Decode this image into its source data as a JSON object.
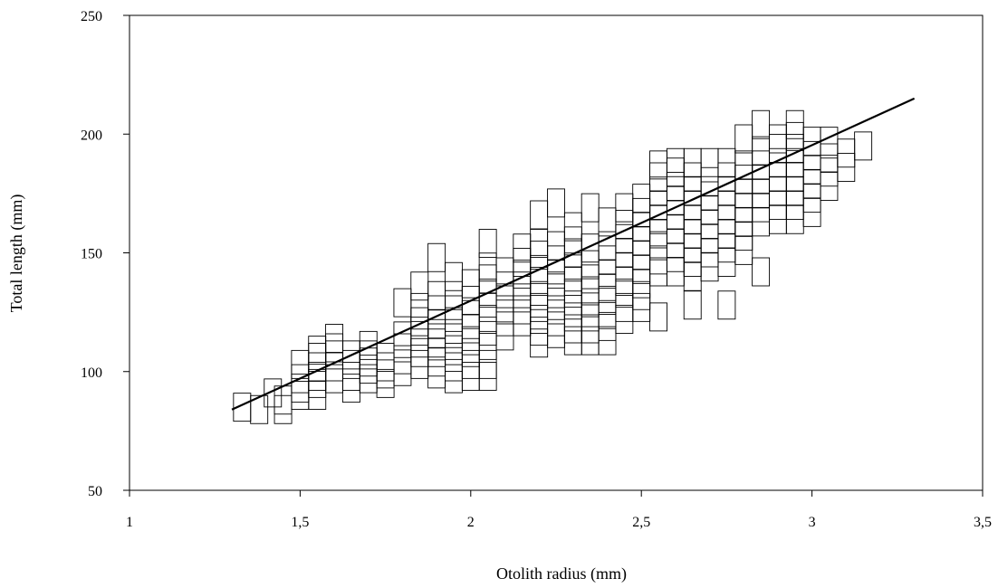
{
  "chart_data": {
    "type": "scatter",
    "title": "",
    "xlabel": "Otolith radius (mm)",
    "ylabel": "Total length (mm)",
    "xlim": [
      1,
      3.5
    ],
    "ylim": [
      50,
      250
    ],
    "x_ticks": [
      "1",
      "1,5",
      "2",
      "2,5",
      "3",
      "3,5"
    ],
    "x_tick_values": [
      1,
      1.5,
      2,
      2.5,
      3,
      3.5
    ],
    "y_ticks": [
      "50",
      "100",
      "150",
      "200",
      "250"
    ],
    "y_tick_values": [
      50,
      100,
      150,
      200,
      250
    ],
    "grid": false,
    "marker": "open-rectangle",
    "regression_line": {
      "x": [
        1.3,
        3.3
      ],
      "y": [
        84,
        215
      ]
    },
    "points": [
      [
        1.33,
        85
      ],
      [
        1.38,
        84
      ],
      [
        1.42,
        91
      ],
      [
        1.45,
        84
      ],
      [
        1.45,
        88
      ],
      [
        1.5,
        90
      ],
      [
        1.5,
        93
      ],
      [
        1.5,
        97
      ],
      [
        1.5,
        103
      ],
      [
        1.55,
        90
      ],
      [
        1.55,
        95
      ],
      [
        1.55,
        98
      ],
      [
        1.55,
        102
      ],
      [
        1.55,
        106
      ],
      [
        1.55,
        109
      ],
      [
        1.6,
        97
      ],
      [
        1.6,
        102
      ],
      [
        1.6,
        107
      ],
      [
        1.6,
        110
      ],
      [
        1.6,
        114
      ],
      [
        1.65,
        93
      ],
      [
        1.65,
        98
      ],
      [
        1.65,
        103
      ],
      [
        1.65,
        107
      ],
      [
        1.7,
        97
      ],
      [
        1.7,
        101
      ],
      [
        1.7,
        104
      ],
      [
        1.7,
        107
      ],
      [
        1.7,
        111
      ],
      [
        1.75,
        95
      ],
      [
        1.75,
        99
      ],
      [
        1.75,
        102
      ],
      [
        1.75,
        106
      ],
      [
        1.8,
        100
      ],
      [
        1.8,
        105
      ],
      [
        1.8,
        110
      ],
      [
        1.8,
        115
      ],
      [
        1.8,
        129
      ],
      [
        1.85,
        103
      ],
      [
        1.85,
        108
      ],
      [
        1.85,
        112
      ],
      [
        1.85,
        117
      ],
      [
        1.85,
        121
      ],
      [
        1.85,
        127
      ],
      [
        1.85,
        136
      ],
      [
        1.9,
        99
      ],
      [
        1.9,
        104
      ],
      [
        1.9,
        108
      ],
      [
        1.9,
        112
      ],
      [
        1.9,
        116
      ],
      [
        1.9,
        120
      ],
      [
        1.9,
        126
      ],
      [
        1.9,
        132
      ],
      [
        1.9,
        148
      ],
      [
        1.95,
        97
      ],
      [
        1.95,
        102
      ],
      [
        1.95,
        106
      ],
      [
        1.95,
        111
      ],
      [
        1.95,
        116
      ],
      [
        1.95,
        121
      ],
      [
        1.95,
        126
      ],
      [
        1.95,
        132
      ],
      [
        1.95,
        140
      ],
      [
        2.0,
        98
      ],
      [
        2.0,
        103
      ],
      [
        2.0,
        108
      ],
      [
        2.0,
        113
      ],
      [
        2.0,
        118
      ],
      [
        2.0,
        124
      ],
      [
        2.0,
        130
      ],
      [
        2.0,
        137
      ],
      [
        2.05,
        98
      ],
      [
        2.05,
        103
      ],
      [
        2.05,
        111
      ],
      [
        2.05,
        117
      ],
      [
        2.05,
        122
      ],
      [
        2.05,
        127
      ],
      [
        2.05,
        133
      ],
      [
        2.05,
        139
      ],
      [
        2.05,
        144
      ],
      [
        2.05,
        154
      ],
      [
        2.1,
        115
      ],
      [
        2.1,
        121
      ],
      [
        2.1,
        126
      ],
      [
        2.1,
        131
      ],
      [
        2.1,
        136
      ],
      [
        2.1,
        142
      ],
      [
        2.15,
        121
      ],
      [
        2.15,
        126
      ],
      [
        2.15,
        131
      ],
      [
        2.15,
        136
      ],
      [
        2.15,
        141
      ],
      [
        2.15,
        146
      ],
      [
        2.15,
        152
      ],
      [
        2.2,
        112
      ],
      [
        2.2,
        117
      ],
      [
        2.2,
        122
      ],
      [
        2.2,
        127
      ],
      [
        2.2,
        132
      ],
      [
        2.2,
        138
      ],
      [
        2.2,
        143
      ],
      [
        2.2,
        149
      ],
      [
        2.2,
        154
      ],
      [
        2.2,
        166
      ],
      [
        2.25,
        116
      ],
      [
        2.25,
        121
      ],
      [
        2.25,
        126
      ],
      [
        2.25,
        131
      ],
      [
        2.25,
        136
      ],
      [
        2.25,
        141
      ],
      [
        2.25,
        147
      ],
      [
        2.25,
        153
      ],
      [
        2.25,
        171
      ],
      [
        2.3,
        113
      ],
      [
        2.3,
        118
      ],
      [
        2.3,
        123
      ],
      [
        2.3,
        128
      ],
      [
        2.3,
        133
      ],
      [
        2.3,
        138
      ],
      [
        2.3,
        144
      ],
      [
        2.3,
        150
      ],
      [
        2.3,
        155
      ],
      [
        2.3,
        161
      ],
      [
        2.35,
        113
      ],
      [
        2.35,
        118
      ],
      [
        2.35,
        123
      ],
      [
        2.35,
        129
      ],
      [
        2.35,
        134
      ],
      [
        2.35,
        139
      ],
      [
        2.35,
        145
      ],
      [
        2.35,
        152
      ],
      [
        2.35,
        169
      ],
      [
        2.4,
        113
      ],
      [
        2.4,
        119
      ],
      [
        2.4,
        124
      ],
      [
        2.4,
        130
      ],
      [
        2.4,
        135
      ],
      [
        2.4,
        141
      ],
      [
        2.4,
        147
      ],
      [
        2.4,
        153
      ],
      [
        2.4,
        163
      ],
      [
        2.45,
        122
      ],
      [
        2.45,
        127
      ],
      [
        2.45,
        133
      ],
      [
        2.45,
        138
      ],
      [
        2.45,
        144
      ],
      [
        2.45,
        150
      ],
      [
        2.45,
        156
      ],
      [
        2.45,
        162
      ],
      [
        2.45,
        169
      ],
      [
        2.5,
        127
      ],
      [
        2.5,
        132
      ],
      [
        2.5,
        137
      ],
      [
        2.5,
        143
      ],
      [
        2.5,
        149
      ],
      [
        2.5,
        155
      ],
      [
        2.5,
        161
      ],
      [
        2.5,
        167
      ],
      [
        2.5,
        173
      ],
      [
        2.55,
        123
      ],
      [
        2.55,
        142
      ],
      [
        2.55,
        147
      ],
      [
        2.55,
        153
      ],
      [
        2.55,
        158
      ],
      [
        2.55,
        164
      ],
      [
        2.55,
        170
      ],
      [
        2.55,
        176
      ],
      [
        2.55,
        182
      ],
      [
        2.55,
        187
      ],
      [
        2.6,
        142
      ],
      [
        2.6,
        148
      ],
      [
        2.6,
        154
      ],
      [
        2.6,
        160
      ],
      [
        2.6,
        166
      ],
      [
        2.6,
        172
      ],
      [
        2.6,
        178
      ],
      [
        2.6,
        184
      ],
      [
        2.6,
        188
      ],
      [
        2.65,
        128
      ],
      [
        2.65,
        140
      ],
      [
        2.65,
        146
      ],
      [
        2.65,
        152
      ],
      [
        2.65,
        158
      ],
      [
        2.65,
        164
      ],
      [
        2.65,
        170
      ],
      [
        2.65,
        176
      ],
      [
        2.65,
        182
      ],
      [
        2.65,
        188
      ],
      [
        2.7,
        144
      ],
      [
        2.7,
        150
      ],
      [
        2.7,
        156
      ],
      [
        2.7,
        162
      ],
      [
        2.7,
        168
      ],
      [
        2.7,
        174
      ],
      [
        2.7,
        180
      ],
      [
        2.7,
        188
      ],
      [
        2.75,
        128
      ],
      [
        2.75,
        146
      ],
      [
        2.75,
        152
      ],
      [
        2.75,
        158
      ],
      [
        2.75,
        164
      ],
      [
        2.75,
        170
      ],
      [
        2.75,
        176
      ],
      [
        2.75,
        182
      ],
      [
        2.75,
        188
      ],
      [
        2.8,
        151
      ],
      [
        2.8,
        157
      ],
      [
        2.8,
        163
      ],
      [
        2.8,
        169
      ],
      [
        2.8,
        175
      ],
      [
        2.8,
        181
      ],
      [
        2.8,
        187
      ],
      [
        2.8,
        198
      ],
      [
        2.85,
        142
      ],
      [
        2.85,
        163
      ],
      [
        2.85,
        169
      ],
      [
        2.85,
        175
      ],
      [
        2.85,
        181
      ],
      [
        2.85,
        187
      ],
      [
        2.85,
        193
      ],
      [
        2.85,
        204
      ],
      [
        2.9,
        164
      ],
      [
        2.9,
        170
      ],
      [
        2.9,
        176
      ],
      [
        2.9,
        182
      ],
      [
        2.9,
        188
      ],
      [
        2.9,
        194
      ],
      [
        2.9,
        198
      ],
      [
        2.95,
        164
      ],
      [
        2.95,
        170
      ],
      [
        2.95,
        176
      ],
      [
        2.95,
        182
      ],
      [
        2.95,
        188
      ],
      [
        2.95,
        194
      ],
      [
        2.95,
        199
      ],
      [
        2.95,
        204
      ],
      [
        3.0,
        167
      ],
      [
        3.0,
        173
      ],
      [
        3.0,
        179
      ],
      [
        3.0,
        185
      ],
      [
        3.0,
        191
      ],
      [
        3.0,
        197
      ],
      [
        3.05,
        178
      ],
      [
        3.05,
        184
      ],
      [
        3.05,
        190
      ],
      [
        3.05,
        197
      ],
      [
        3.1,
        186
      ],
      [
        3.1,
        192
      ],
      [
        3.15,
        195
      ]
    ]
  }
}
